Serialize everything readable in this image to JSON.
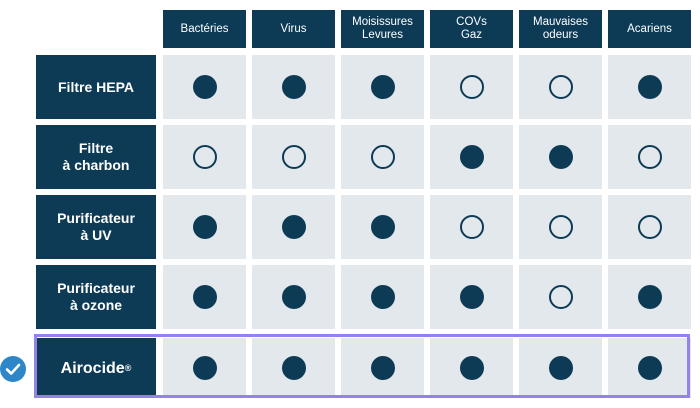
{
  "columns": [
    {
      "label": "Bactéries"
    },
    {
      "label": "Virus"
    },
    {
      "label": "Moisissures\nLevures"
    },
    {
      "label": "COVs\nGaz"
    },
    {
      "label": "Mauvaises\nodeurs"
    },
    {
      "label": "Acariens"
    }
  ],
  "rows": [
    {
      "label": "Filtre HEPA",
      "marks": [
        "filled",
        "filled",
        "filled",
        "empty",
        "empty",
        "filled"
      ]
    },
    {
      "label": "Filtre\nà charbon",
      "marks": [
        "empty",
        "empty",
        "empty",
        "filled",
        "filled",
        "empty"
      ]
    },
    {
      "label": "Purificateur\nà UV",
      "marks": [
        "filled",
        "filled",
        "filled",
        "empty",
        "empty",
        "empty"
      ]
    },
    {
      "label": "Purificateur\nà ozone",
      "marks": [
        "filled",
        "filled",
        "filled",
        "filled",
        "empty",
        "filled"
      ]
    },
    {
      "label": "Airocide",
      "label_sup": "®",
      "highlighted": true,
      "marks": [
        "filled",
        "filled",
        "filled",
        "filled",
        "filled",
        "filled"
      ]
    }
  ],
  "colors": {
    "header": "#0d3b56",
    "cell": "#e3e8ec",
    "highlight_border": "#9183e8",
    "check": "#2e86c8"
  },
  "icons": {
    "highlight_marker": "check-circle-icon"
  }
}
